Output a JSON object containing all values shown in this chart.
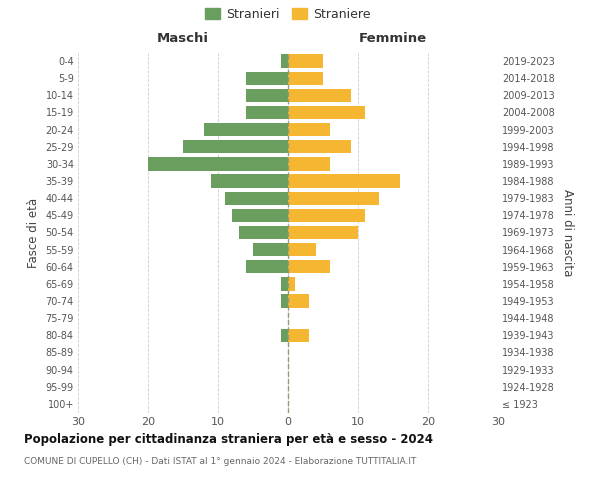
{
  "age_groups": [
    "100+",
    "95-99",
    "90-94",
    "85-89",
    "80-84",
    "75-79",
    "70-74",
    "65-69",
    "60-64",
    "55-59",
    "50-54",
    "45-49",
    "40-44",
    "35-39",
    "30-34",
    "25-29",
    "20-24",
    "15-19",
    "10-14",
    "5-9",
    "0-4"
  ],
  "birth_years": [
    "≤ 1923",
    "1924-1928",
    "1929-1933",
    "1934-1938",
    "1939-1943",
    "1944-1948",
    "1949-1953",
    "1954-1958",
    "1959-1963",
    "1964-1968",
    "1969-1973",
    "1974-1978",
    "1979-1983",
    "1984-1988",
    "1989-1993",
    "1994-1998",
    "1999-2003",
    "2004-2008",
    "2009-2013",
    "2014-2018",
    "2019-2023"
  ],
  "males": [
    0,
    0,
    0,
    0,
    1,
    0,
    1,
    1,
    6,
    5,
    7,
    8,
    9,
    11,
    20,
    15,
    12,
    6,
    6,
    6,
    1
  ],
  "females": [
    0,
    0,
    0,
    0,
    3,
    0,
    3,
    1,
    6,
    4,
    10,
    11,
    13,
    16,
    6,
    9,
    6,
    11,
    9,
    5,
    5
  ],
  "male_color": "#6a9e5f",
  "female_color": "#f5b731",
  "title": "Popolazione per cittadinanza straniera per età e sesso - 2024",
  "subtitle": "COMUNE DI CUPELLO (CH) - Dati ISTAT al 1° gennaio 2024 - Elaborazione TUTTITALIA.IT",
  "xlabel_left": "Maschi",
  "xlabel_right": "Femmine",
  "ylabel_left": "Fasce di età",
  "ylabel_right": "Anni di nascita",
  "legend_male": "Stranieri",
  "legend_female": "Straniere",
  "xlim": 30,
  "background_color": "#ffffff",
  "grid_color": "#cccccc",
  "bar_height": 0.78
}
